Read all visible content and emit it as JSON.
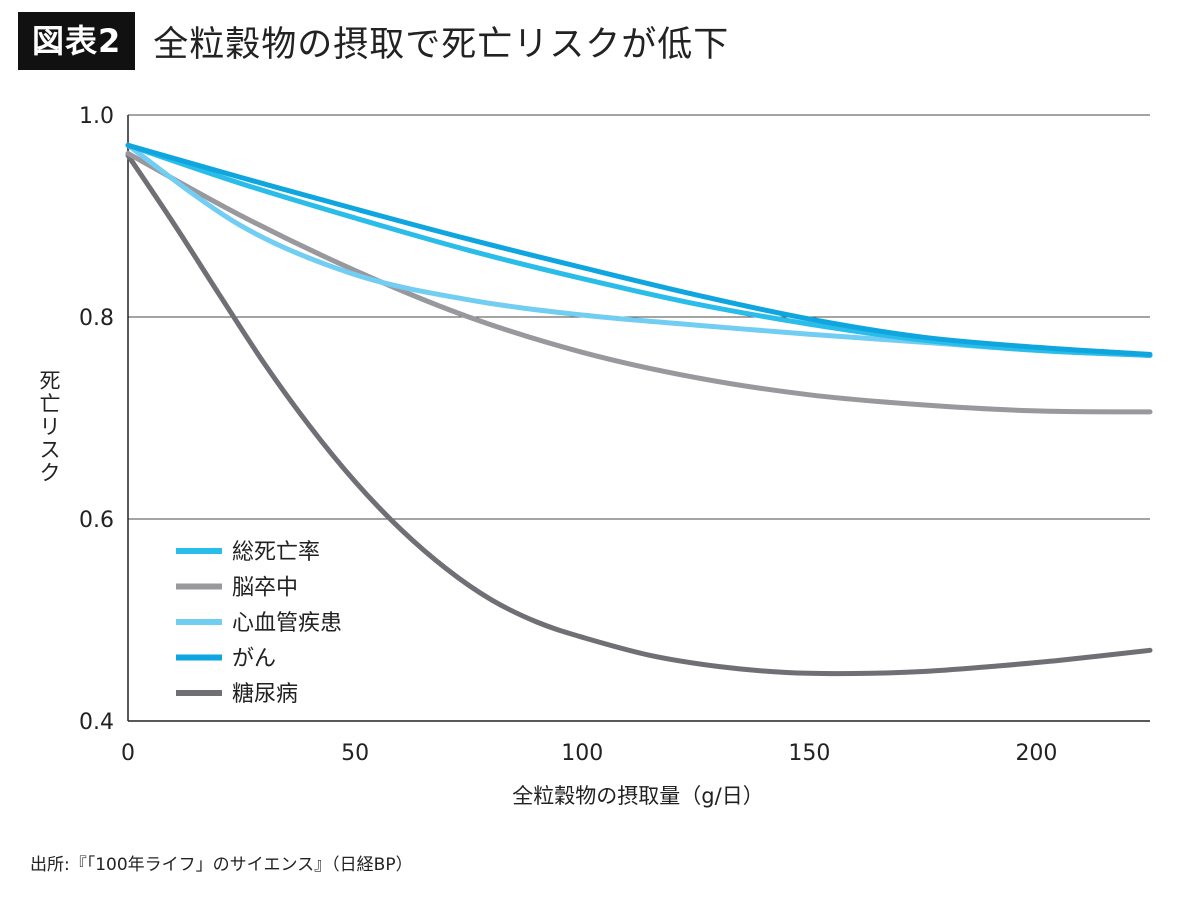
{
  "header": {
    "badge": "図表2",
    "title": "全粒穀物の摂取で死亡リスクが低下"
  },
  "source": "出所:『「100年ライフ」のサイエンス』（日経BP）",
  "chart_data": {
    "type": "line",
    "xlabel": "全粒穀物の摂取量（g/日）",
    "ylabel": "死亡リスク",
    "xlim": [
      0,
      225
    ],
    "ylim": [
      0.4,
      1.0
    ],
    "xticks": [
      0,
      50,
      100,
      150,
      200
    ],
    "xtick_labels": [
      "0",
      "50",
      "100",
      "150",
      "200"
    ],
    "yticks": [
      0.4,
      0.6,
      0.8,
      1.0
    ],
    "ytick_labels": [
      "0.4",
      "0.6",
      "0.8",
      "1.0"
    ],
    "grid": "horizontal",
    "legend_position": "bottom-left",
    "series": [
      {
        "name": "総死亡率",
        "color": "#2bbde9",
        "x": [
          0,
          25,
          50,
          75,
          100,
          125,
          150,
          175,
          200,
          225
        ],
        "y": [
          0.97,
          0.932,
          0.898,
          0.866,
          0.838,
          0.813,
          0.793,
          0.777,
          0.767,
          0.762
        ]
      },
      {
        "name": "脳卒中",
        "color": "#98989d",
        "x": [
          0,
          25,
          50,
          75,
          100,
          125,
          150,
          175,
          200,
          225
        ],
        "y": [
          0.962,
          0.9,
          0.846,
          0.8,
          0.765,
          0.74,
          0.723,
          0.713,
          0.707,
          0.706
        ]
      },
      {
        "name": "心血管疾患",
        "color": "#72cdf3",
        "x": [
          0,
          25,
          50,
          75,
          100,
          125,
          150,
          175,
          200,
          225
        ],
        "y": [
          0.97,
          0.89,
          0.842,
          0.817,
          0.802,
          0.792,
          0.783,
          0.775,
          0.767,
          0.762
        ]
      },
      {
        "name": "がん",
        "color": "#0fa6df",
        "x": [
          0,
          25,
          50,
          75,
          100,
          125,
          150,
          175,
          200,
          225
        ],
        "y": [
          0.97,
          0.938,
          0.907,
          0.877,
          0.849,
          0.822,
          0.798,
          0.78,
          0.77,
          0.763
        ]
      },
      {
        "name": "糖尿病",
        "color": "#6f6f75",
        "x": [
          0,
          10,
          20,
          30,
          40,
          50,
          60,
          70,
          80,
          90,
          100,
          115,
          130,
          145,
          160,
          175,
          190,
          205,
          225
        ],
        "y": [
          0.96,
          0.893,
          0.823,
          0.754,
          0.692,
          0.637,
          0.59,
          0.551,
          0.52,
          0.498,
          0.483,
          0.465,
          0.454,
          0.448,
          0.447,
          0.449,
          0.454,
          0.46,
          0.47
        ]
      }
    ]
  }
}
